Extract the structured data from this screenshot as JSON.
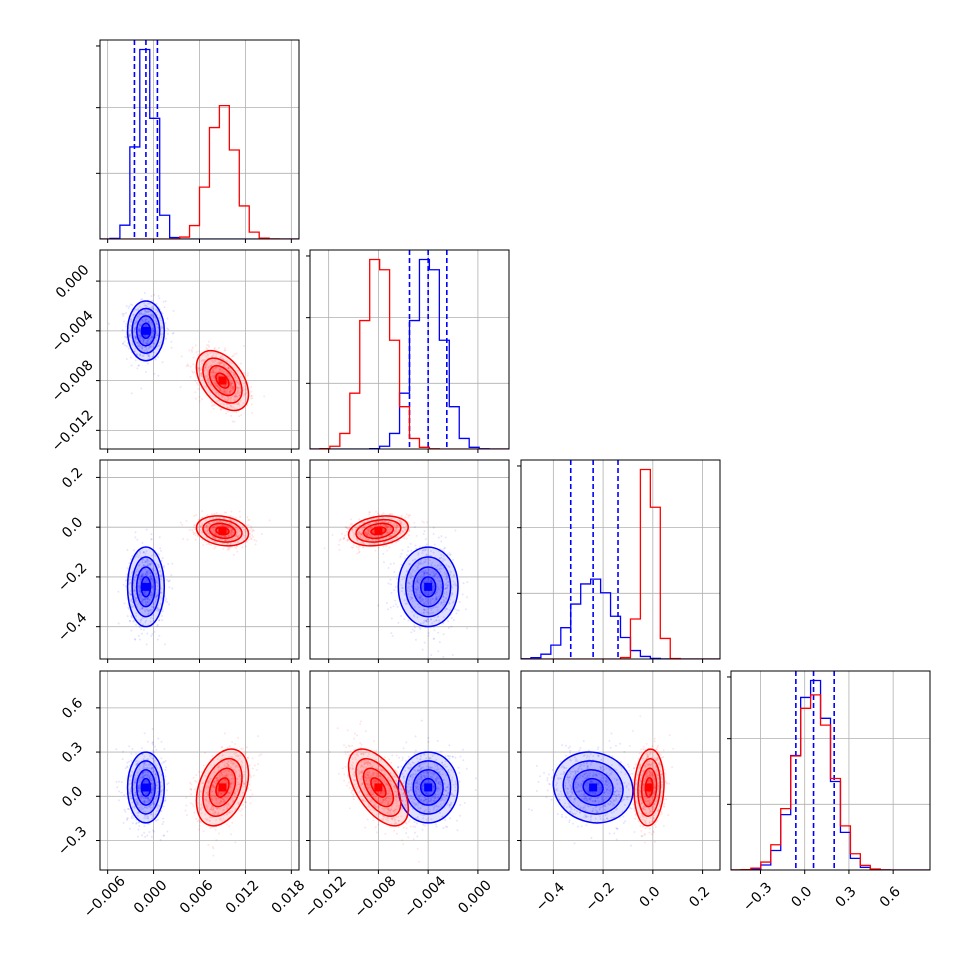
{
  "colors": {
    "blue": "#0000ff",
    "red": "#ff0000",
    "grid": "#b0b0b0",
    "axis": "#000000"
  },
  "chart_data": {
    "type": "corner",
    "grid": true,
    "params": [
      {
        "range": [
          -0.007,
          0.019
        ],
        "ticks": [
          -0.006,
          0.0,
          0.006,
          0.012,
          0.018
        ],
        "tick_labels": [
          "−0.006",
          "0.000",
          "0.006",
          "0.012",
          "0.018"
        ]
      },
      {
        "range": [
          -0.0135,
          0.0025
        ],
        "ticks": [
          -0.012,
          -0.008,
          -0.004,
          0.0
        ],
        "tick_labels": [
          "−0.012",
          "−0.008",
          "−0.004",
          "0.000"
        ]
      },
      {
        "range": [
          -0.53,
          0.27
        ],
        "ticks": [
          -0.4,
          -0.2,
          0.0,
          0.2
        ],
        "tick_labels": [
          "−0.4",
          "−0.2",
          "0.0",
          "0.2"
        ]
      },
      {
        "range": [
          -0.5,
          0.85
        ],
        "ticks": [
          -0.3,
          0.0,
          0.3,
          0.6
        ],
        "tick_labels": [
          "−0.3",
          "0.0",
          "0.3",
          "0.6"
        ]
      }
    ],
    "series": [
      {
        "color": "blue",
        "mean": [
          -0.001,
          -0.004,
          -0.24,
          0.06
        ],
        "sd": [
          0.0012,
          0.0012,
          0.08,
          0.12
        ],
        "quantile_lines": [
          [
            -0.0025,
            -0.001,
            0.0005
          ],
          [
            -0.0055,
            -0.004,
            -0.0025
          ],
          [
            -0.33,
            -0.24,
            -0.14
          ],
          [
            -0.06,
            0.06,
            0.2
          ]
        ],
        "corr": [
          [
            0,
            0,
            0,
            0
          ],
          [
            0,
            0,
            0,
            0
          ],
          [
            0,
            0,
            0,
            -0.1
          ],
          [
            0,
            0,
            -0.1,
            0
          ]
        ]
      },
      {
        "color": "red",
        "mean": [
          0.009,
          -0.008,
          -0.015,
          0.06
        ],
        "sd": [
          0.0017,
          0.0012,
          0.03,
          0.13
        ],
        "quantile_lines": [],
        "corr": [
          [
            0,
            -0.45,
            -0.2,
            0.35
          ],
          [
            -0.45,
            0,
            0.25,
            -0.55
          ],
          [
            -0.2,
            0.25,
            0,
            0.1
          ],
          [
            0.35,
            -0.55,
            0.1,
            0
          ]
        ]
      }
    ]
  }
}
